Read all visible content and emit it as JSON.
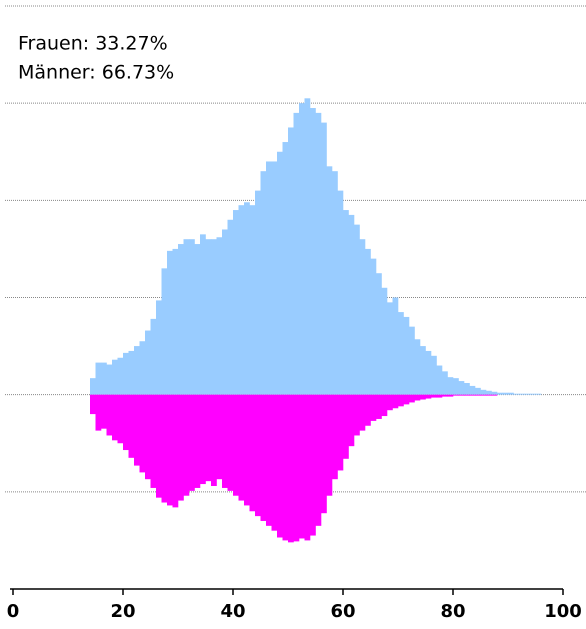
{
  "chart_data": {
    "type": "bar",
    "annotations": [
      "Frauen: 33.27%",
      "Männer: 66.73%"
    ],
    "x": [
      14,
      15,
      16,
      17,
      18,
      19,
      20,
      21,
      22,
      23,
      24,
      25,
      26,
      27,
      28,
      29,
      30,
      31,
      32,
      33,
      34,
      35,
      36,
      37,
      38,
      39,
      40,
      41,
      42,
      43,
      44,
      45,
      46,
      47,
      48,
      49,
      50,
      51,
      52,
      53,
      54,
      55,
      56,
      57,
      58,
      59,
      60,
      61,
      62,
      63,
      64,
      65,
      66,
      67,
      68,
      69,
      70,
      71,
      72,
      73,
      74,
      75,
      76,
      77,
      78,
      79,
      80,
      81,
      82,
      83,
      84,
      85,
      86,
      87,
      88,
      89,
      90,
      91,
      92,
      93,
      94,
      95
    ],
    "series": [
      {
        "color": "#99ccff",
        "values": [
          0.17,
          0.33,
          0.33,
          0.31,
          0.36,
          0.38,
          0.43,
          0.45,
          0.5,
          0.55,
          0.66,
          0.78,
          0.97,
          1.3,
          1.48,
          1.5,
          1.55,
          1.6,
          1.6,
          1.55,
          1.65,
          1.6,
          1.6,
          1.62,
          1.7,
          1.8,
          1.9,
          1.95,
          1.98,
          1.95,
          2.1,
          2.3,
          2.4,
          2.4,
          2.5,
          2.6,
          2.75,
          2.9,
          3.0,
          3.05,
          2.95,
          2.9,
          2.8,
          2.35,
          2.3,
          2.1,
          1.9,
          1.85,
          1.75,
          1.6,
          1.5,
          1.4,
          1.25,
          1.1,
          0.95,
          1.0,
          0.85,
          0.8,
          0.7,
          0.57,
          0.5,
          0.45,
          0.4,
          0.3,
          0.24,
          0.18,
          0.17,
          0.14,
          0.12,
          0.09,
          0.07,
          0.05,
          0.04,
          0.03,
          0.02,
          0.02,
          0.02,
          0.01,
          0.01,
          0.01,
          0.01,
          0.01
        ]
      },
      {
        "color": "#ff00ff",
        "values": [
          -0.2,
          -0.37,
          -0.35,
          -0.42,
          -0.47,
          -0.5,
          -0.57,
          -0.65,
          -0.73,
          -0.8,
          -0.87,
          -0.96,
          -1.06,
          -1.11,
          -1.14,
          -1.16,
          -1.09,
          -1.04,
          -0.99,
          -0.96,
          -0.92,
          -0.89,
          -0.94,
          -0.87,
          -0.96,
          -0.99,
          -1.04,
          -1.09,
          -1.14,
          -1.2,
          -1.25,
          -1.3,
          -1.35,
          -1.4,
          -1.47,
          -1.5,
          -1.52,
          -1.51,
          -1.48,
          -1.5,
          -1.45,
          -1.35,
          -1.22,
          -1.04,
          -0.87,
          -0.78,
          -0.66,
          -0.53,
          -0.42,
          -0.37,
          -0.32,
          -0.27,
          -0.25,
          -0.22,
          -0.16,
          -0.14,
          -0.12,
          -0.1,
          -0.08,
          -0.06,
          -0.05,
          -0.04,
          -0.03,
          -0.03,
          -0.02,
          -0.02,
          -0.01,
          -0.01,
          -0.01,
          -0.01,
          -0.01,
          -0.01,
          -0.01,
          -0.01,
          0,
          0,
          0,
          0,
          0,
          0,
          0,
          0
        ]
      }
    ],
    "xlim": [
      0,
      100
    ],
    "xticks": [
      0,
      20,
      40,
      60,
      80,
      100
    ],
    "ylim": [
      -2,
      4
    ],
    "yticks": [
      -1,
      0,
      1,
      2,
      3,
      4
    ],
    "grid": true
  }
}
